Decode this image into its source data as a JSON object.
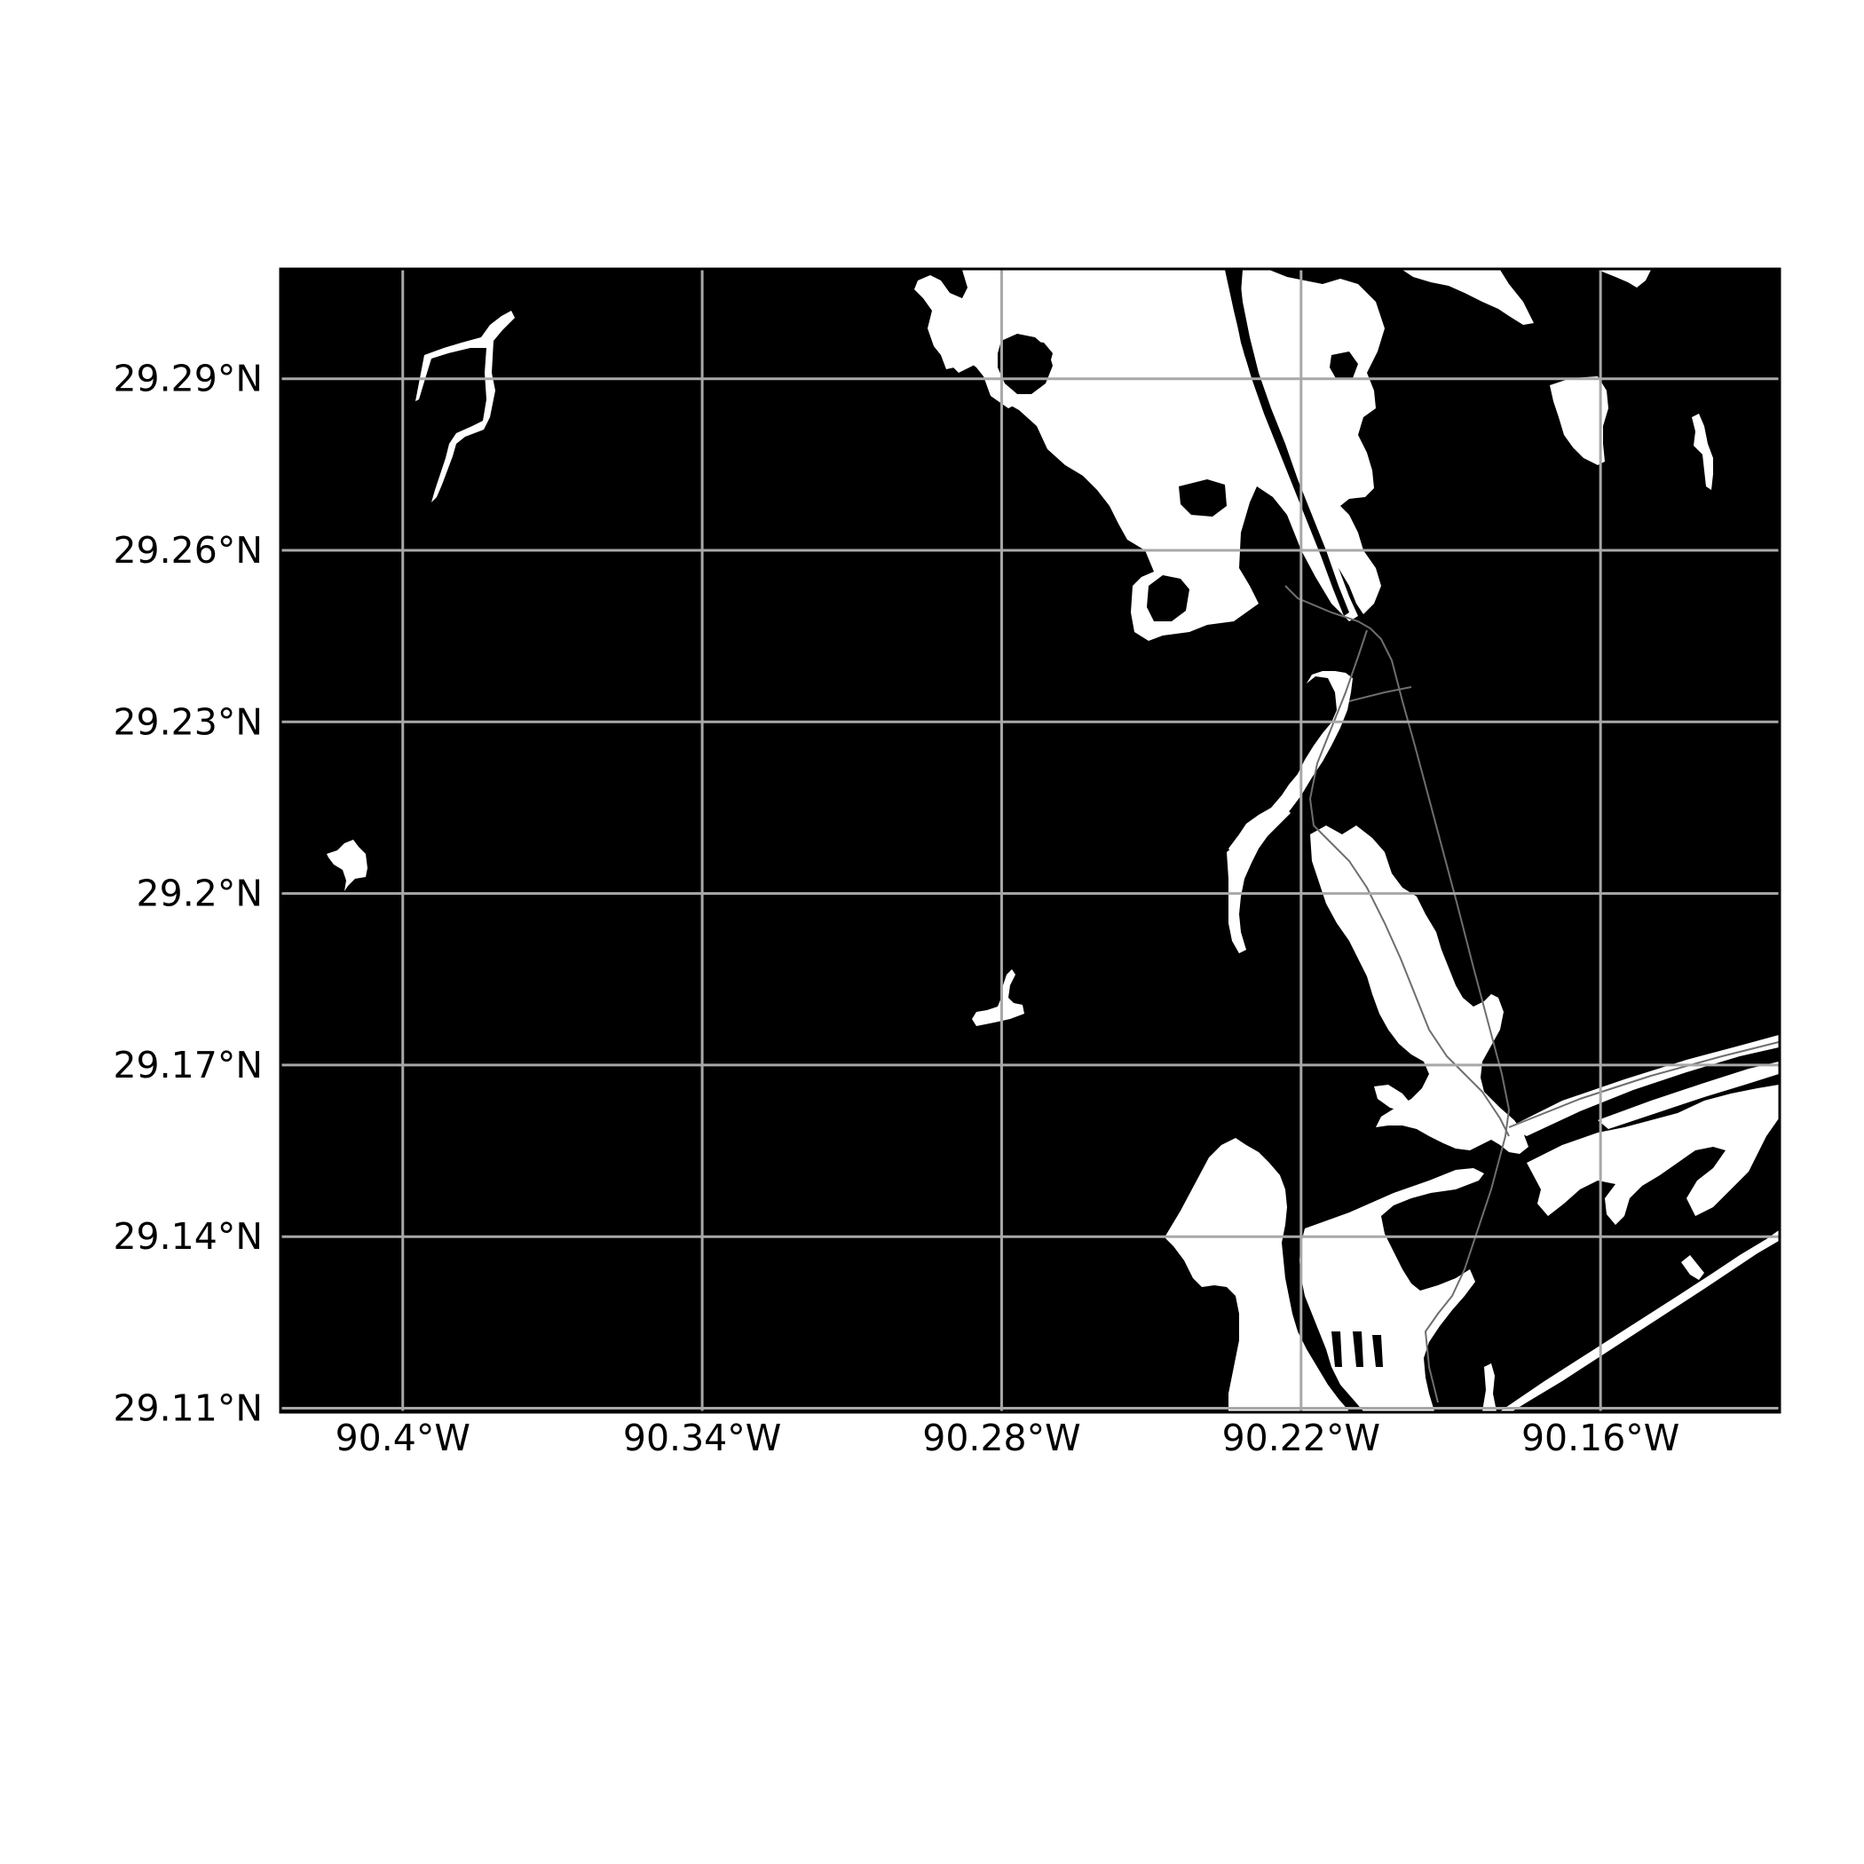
{
  "map": {
    "background_color": "#000000",
    "land_color": "#ffffff",
    "grid_color": "#a8a8a8",
    "x_ticks": [
      {
        "value": -90.4,
        "label": "90.4°W"
      },
      {
        "value": -90.34,
        "label": "90.34°W"
      },
      {
        "value": -90.28,
        "label": "90.28°W"
      },
      {
        "value": -90.22,
        "label": "90.22°W"
      },
      {
        "value": -90.16,
        "label": "90.16°W"
      }
    ],
    "y_ticks": [
      {
        "value": 29.29,
        "label": "29.29°N"
      },
      {
        "value": 29.26,
        "label": "29.26°N"
      },
      {
        "value": 29.23,
        "label": "29.23°N"
      },
      {
        "value": 29.2,
        "label": "29.2°N"
      },
      {
        "value": 29.17,
        "label": "29.17°N"
      },
      {
        "value": 29.14,
        "label": "29.14°N"
      },
      {
        "value": 29.11,
        "label": "29.11°N"
      }
    ],
    "x_range": [
      -90.4245,
      -90.1241
    ],
    "y_range": [
      29.1093,
      29.3092
    ]
  }
}
